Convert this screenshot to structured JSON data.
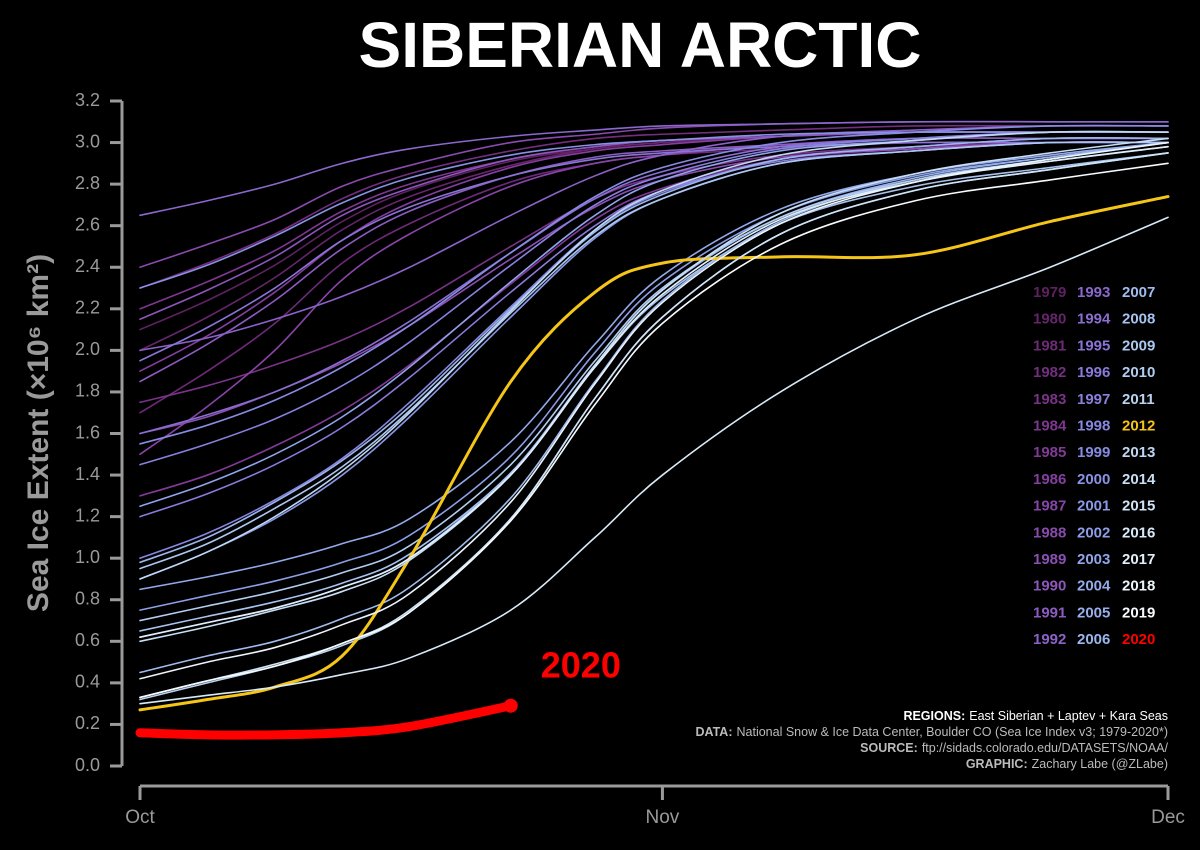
{
  "chart_data": {
    "type": "line",
    "title": "SIBERIAN ARCTIC",
    "y_label": "Sea Ice Extent (×10⁶ km²)",
    "x": [
      0,
      4,
      8,
      12,
      16,
      22,
      27,
      31,
      38,
      46,
      54,
      61
    ],
    "xlim": [
      0,
      61
    ],
    "xticks": [
      {
        "value": 0,
        "label": "Oct"
      },
      {
        "value": 31,
        "label": "Nov"
      },
      {
        "value": 61,
        "label": "Dec"
      }
    ],
    "ylim": [
      0,
      3.2
    ],
    "yticks": [
      {
        "value": 0,
        "label": "0.0"
      },
      {
        "value": 0.2,
        "label": "0.2"
      },
      {
        "value": 0.4,
        "label": "0.4"
      },
      {
        "value": 0.6,
        "label": "0.6"
      },
      {
        "value": 0.8,
        "label": "0.8"
      },
      {
        "value": 1,
        "label": "1.0"
      },
      {
        "value": 1.2,
        "label": "1.2"
      },
      {
        "value": 1.4,
        "label": "1.4"
      },
      {
        "value": 1.6,
        "label": "1.6"
      },
      {
        "value": 1.8,
        "label": "1.8"
      },
      {
        "value": 2,
        "label": "2.0"
      },
      {
        "value": 2.2,
        "label": "2.2"
      },
      {
        "value": 2.4,
        "label": "2.4"
      },
      {
        "value": 2.6,
        "label": "2.6"
      },
      {
        "value": 2.8,
        "label": "2.8"
      },
      {
        "value": 3,
        "label": "3.0"
      },
      {
        "value": 3.2,
        "label": "3.2"
      }
    ],
    "grid": false,
    "legend_position": "right",
    "series": [
      {
        "name": "1979",
        "color": "#5e2160",
        "values": [
          2.1,
          2.24,
          2.41,
          2.62,
          2.77,
          2.91,
          2.97,
          3.0,
          3.03,
          3.05,
          3.05,
          3.05
        ]
      },
      {
        "name": "1980",
        "color": "#66256b",
        "values": [
          2.0,
          2.16,
          2.35,
          2.58,
          2.74,
          2.89,
          2.97,
          3.0,
          3.03,
          3.05,
          3.05,
          3.05
        ]
      },
      {
        "name": "1981",
        "color": "#6e2a78",
        "values": [
          1.7,
          1.9,
          2.13,
          2.42,
          2.61,
          2.81,
          2.9,
          2.94,
          2.97,
          3.0,
          3.0,
          3.0
        ]
      },
      {
        "name": "1982",
        "color": "#742e80",
        "values": [
          2.3,
          2.42,
          2.56,
          2.73,
          2.85,
          2.96,
          3.02,
          3.04,
          3.06,
          3.08,
          3.08,
          3.08
        ]
      },
      {
        "name": "1983",
        "color": "#7a3288",
        "values": [
          1.75,
          1.83,
          1.93,
          2.05,
          2.21,
          2.5,
          2.73,
          2.84,
          2.94,
          2.98,
          3.0,
          3.0
        ]
      },
      {
        "name": "1984",
        "color": "#7e3690",
        "values": [
          2.2,
          2.33,
          2.48,
          2.67,
          2.8,
          2.92,
          2.98,
          3.01,
          3.03,
          3.05,
          3.05,
          3.05
        ]
      },
      {
        "name": "1985",
        "color": "#823a98",
        "values": [
          1.3,
          1.4,
          1.54,
          1.71,
          1.93,
          2.32,
          2.63,
          2.78,
          2.92,
          2.97,
          3.0,
          3.0
        ]
      },
      {
        "name": "1986",
        "color": "#853ea0",
        "values": [
          1.9,
          2.07,
          2.28,
          2.53,
          2.71,
          2.88,
          2.96,
          2.99,
          3.03,
          3.05,
          3.05,
          3.05
        ]
      },
      {
        "name": "1987",
        "color": "#8844a8",
        "values": [
          1.5,
          1.73,
          2.0,
          2.34,
          2.56,
          2.79,
          2.9,
          2.94,
          2.99,
          3.02,
          3.02,
          3.02
        ]
      },
      {
        "name": "1988",
        "color": "#8a4aae",
        "values": [
          2.4,
          2.51,
          2.63,
          2.79,
          2.89,
          3.0,
          3.04,
          3.07,
          3.09,
          3.1,
          3.1,
          3.1
        ]
      },
      {
        "name": "1989",
        "color": "#8c50b4",
        "values": [
          1.6,
          1.68,
          1.8,
          1.94,
          2.12,
          2.44,
          2.69,
          2.82,
          2.93,
          2.97,
          3.0,
          3.0
        ]
      },
      {
        "name": "1990",
        "color": "#8c56bb",
        "values": [
          2.15,
          2.29,
          2.45,
          2.65,
          2.78,
          2.92,
          2.98,
          3.01,
          3.03,
          3.05,
          3.05,
          3.05
        ]
      },
      {
        "name": "1991",
        "color": "#8c5cc2",
        "values": [
          1.85,
          2.03,
          2.24,
          2.49,
          2.67,
          2.84,
          2.93,
          2.96,
          2.99,
          3.02,
          3.02,
          3.02
        ]
      },
      {
        "name": "1992",
        "color": "#8c62c8",
        "values": [
          2.0,
          2.06,
          2.15,
          2.26,
          2.4,
          2.65,
          2.84,
          2.94,
          3.03,
          3.06,
          3.08,
          3.08
        ]
      },
      {
        "name": "1993",
        "color": "#8b68cd",
        "values": [
          2.65,
          2.72,
          2.8,
          2.9,
          2.97,
          3.03,
          3.06,
          3.08,
          3.09,
          3.1,
          3.1,
          3.1
        ]
      },
      {
        "name": "1994",
        "color": "#8a6ed2",
        "values": [
          1.6,
          1.69,
          1.8,
          1.95,
          2.14,
          2.47,
          2.73,
          2.86,
          2.98,
          3.02,
          3.05,
          3.05
        ]
      },
      {
        "name": "1995",
        "color": "#8a74d6",
        "values": [
          1.95,
          2.11,
          2.3,
          2.53,
          2.69,
          2.84,
          2.92,
          2.95,
          2.98,
          3.0,
          3.0,
          3.0
        ]
      },
      {
        "name": "1996",
        "color": "#897adb",
        "values": [
          1.2,
          1.31,
          1.45,
          1.63,
          1.87,
          2.28,
          2.6,
          2.77,
          2.91,
          2.96,
          3.0,
          3.0
        ]
      },
      {
        "name": "1997",
        "color": "#8880de",
        "values": [
          1.45,
          1.55,
          1.67,
          1.83,
          2.04,
          2.41,
          2.7,
          2.84,
          2.97,
          3.02,
          3.05,
          3.05
        ]
      },
      {
        "name": "1998",
        "color": "#8786e0",
        "values": [
          1.0,
          1.12,
          1.28,
          1.48,
          1.75,
          2.21,
          2.58,
          2.76,
          2.92,
          2.98,
          3.02,
          3.02
        ]
      },
      {
        "name": "1999",
        "color": "#878ce2",
        "values": [
          1.55,
          1.64,
          1.76,
          1.92,
          2.12,
          2.47,
          2.74,
          2.88,
          3.0,
          3.05,
          3.08,
          3.08
        ]
      },
      {
        "name": "2000",
        "color": "#8892e4",
        "values": [
          2.3,
          2.41,
          2.55,
          2.71,
          2.83,
          2.94,
          2.99,
          3.01,
          3.04,
          3.05,
          3.05,
          3.05
        ]
      },
      {
        "name": "2001",
        "color": "#8a98e6",
        "values": [
          0.9,
          1.03,
          1.19,
          1.4,
          1.68,
          2.16,
          2.54,
          2.73,
          2.9,
          2.96,
          3.0,
          3.0
        ]
      },
      {
        "name": "2002",
        "color": "#8c9ee8",
        "values": [
          0.75,
          0.82,
          0.89,
          0.98,
          1.11,
          1.49,
          1.99,
          2.33,
          2.66,
          2.84,
          2.93,
          3.0
        ]
      },
      {
        "name": "2003",
        "color": "#8fa4ea",
        "values": [
          1.25,
          1.36,
          1.5,
          1.68,
          1.92,
          2.33,
          2.65,
          2.82,
          2.96,
          3.01,
          3.05,
          3.05
        ]
      },
      {
        "name": "2004",
        "color": "#92aaeb",
        "values": [
          0.85,
          0.91,
          0.98,
          1.07,
          1.19,
          1.56,
          2.03,
          2.36,
          2.68,
          2.85,
          2.94,
          3.0
        ]
      },
      {
        "name": "2005",
        "color": "#96b0ec",
        "values": [
          0.62,
          0.69,
          0.76,
          0.86,
          1.0,
          1.41,
          1.93,
          2.29,
          2.64,
          2.83,
          2.93,
          3.0
        ]
      },
      {
        "name": "2006",
        "color": "#9ab6ed",
        "values": [
          0.98,
          1.1,
          1.27,
          1.47,
          1.73,
          2.2,
          2.57,
          2.75,
          2.92,
          2.98,
          3.02,
          3.02
        ]
      },
      {
        "name": "2007",
        "color": "#a0bcee",
        "values": [
          0.45,
          0.53,
          0.6,
          0.71,
          0.86,
          1.29,
          1.85,
          2.24,
          2.62,
          2.82,
          2.92,
          3.0
        ]
      },
      {
        "name": "2008",
        "color": "#a6c2ef",
        "values": [
          0.65,
          0.72,
          0.79,
          0.88,
          1.02,
          1.41,
          1.92,
          2.26,
          2.61,
          2.79,
          2.88,
          2.95
        ]
      },
      {
        "name": "2009",
        "color": "#acc8f0",
        "values": [
          0.95,
          1.07,
          1.24,
          1.44,
          1.71,
          2.18,
          2.55,
          2.73,
          2.9,
          2.96,
          3.0,
          3.0
        ]
      },
      {
        "name": "2010",
        "color": "#b2cdf0",
        "values": [
          0.7,
          0.77,
          0.84,
          0.93,
          1.06,
          1.45,
          1.95,
          2.3,
          2.64,
          2.82,
          2.91,
          2.98
        ]
      },
      {
        "name": "2011",
        "color": "#b8d2f1",
        "values": [
          0.32,
          0.4,
          0.48,
          0.58,
          0.74,
          1.19,
          1.77,
          2.16,
          2.56,
          2.77,
          2.87,
          2.95
        ]
      },
      {
        "name": "2012",
        "color": "#f5c518",
        "values": [
          0.27,
          0.32,
          0.38,
          0.53,
          1.0,
          1.85,
          2.28,
          2.42,
          2.45,
          2.46,
          2.62,
          2.74
        ]
      },
      {
        "name": "2013",
        "color": "#bfd8f2",
        "values": [
          0.9,
          1.03,
          1.2,
          1.42,
          1.7,
          2.19,
          2.58,
          2.77,
          2.94,
          3.01,
          3.05,
          3.05
        ]
      },
      {
        "name": "2014",
        "color": "#c7def4",
        "values": [
          0.6,
          0.67,
          0.75,
          0.84,
          0.99,
          1.4,
          1.93,
          2.29,
          2.66,
          2.85,
          2.95,
          3.02
        ]
      },
      {
        "name": "2015",
        "color": "#cfe4f6",
        "values": [
          0.33,
          0.41,
          0.49,
          0.59,
          0.75,
          1.19,
          1.77,
          2.16,
          2.56,
          2.77,
          2.87,
          2.95
        ]
      },
      {
        "name": "2016",
        "color": "#d8eaf8",
        "values": [
          0.3,
          0.34,
          0.38,
          0.44,
          0.52,
          0.75,
          1.1,
          1.4,
          1.8,
          2.15,
          2.4,
          2.64
        ]
      },
      {
        "name": "2017",
        "color": "#e2effa",
        "values": [
          0.62,
          0.69,
          0.76,
          0.86,
          1.0,
          1.4,
          1.92,
          2.27,
          2.63,
          2.81,
          2.91,
          2.98
        ]
      },
      {
        "name": "2018",
        "color": "#ecf4fc",
        "values": [
          0.42,
          0.5,
          0.57,
          0.68,
          0.83,
          1.27,
          1.84,
          2.23,
          2.61,
          2.81,
          2.92,
          3.0
        ]
      },
      {
        "name": "2019",
        "color": "#f7fbfe",
        "values": [
          0.33,
          0.41,
          0.48,
          0.59,
          0.74,
          1.18,
          1.74,
          2.13,
          2.51,
          2.72,
          2.82,
          2.9
        ]
      },
      {
        "name": "2020",
        "color": "#ff0000",
        "values": [
          0.16,
          0.15,
          0.15,
          0.16,
          0.19,
          0.29,
          null,
          null,
          null,
          null,
          null,
          null
        ]
      }
    ],
    "highlight_label": "2020",
    "notes": [
      {
        "label": "REGIONS:",
        "text": "East Siberian + Laptev + Kara Seas"
      },
      {
        "label": "DATA:",
        "text": "National Snow & Ice Data Center, Boulder CO (Sea Ice Index v3; 1979-2020*)"
      },
      {
        "label": "SOURCE:",
        "text": "ftp://sidads.colorado.edu/DATASETS/NOAA/"
      },
      {
        "label": "GRAPHIC:",
        "text": "Zachary Labe (@ZLabe)"
      }
    ]
  }
}
